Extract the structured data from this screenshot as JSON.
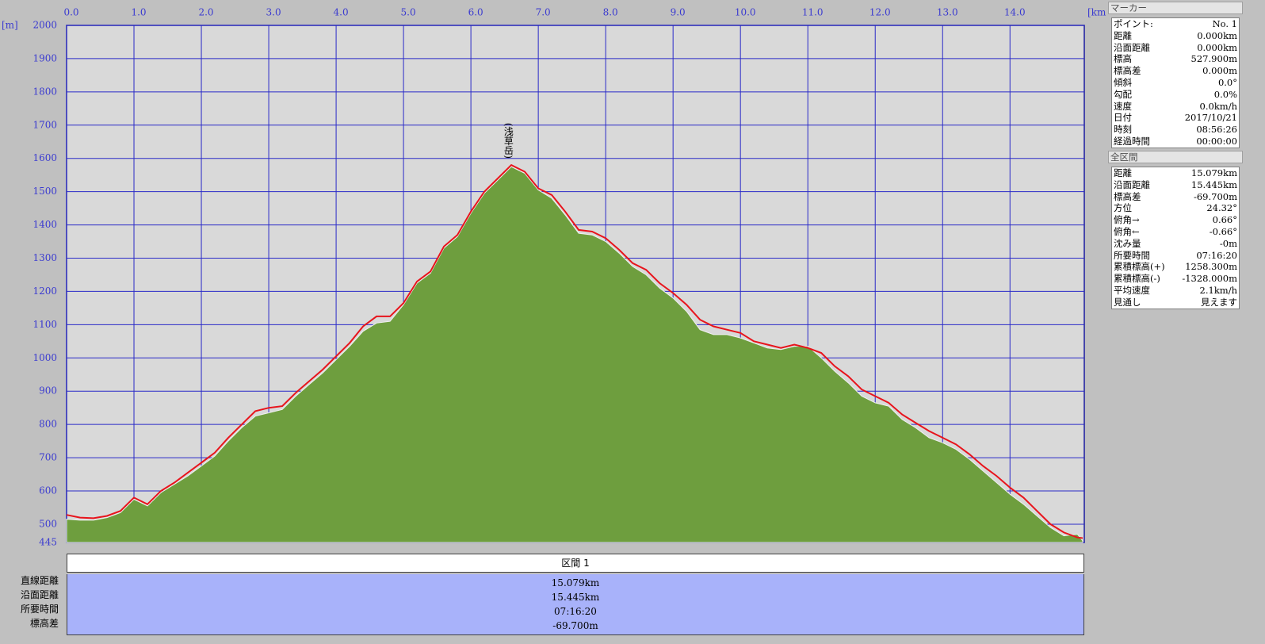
{
  "chart_data": {
    "type": "area",
    "y_unit": "[m]",
    "x_unit": "[km]",
    "x": [
      0,
      0.2,
      0.4,
      0.6,
      0.8,
      1.0,
      1.2,
      1.4,
      1.6,
      1.8,
      2.0,
      2.2,
      2.4,
      2.6,
      2.8,
      3.0,
      3.2,
      3.4,
      3.6,
      3.8,
      4.0,
      4.2,
      4.4,
      4.6,
      4.8,
      5.0,
      5.2,
      5.4,
      5.6,
      5.8,
      6.0,
      6.2,
      6.4,
      6.6,
      6.8,
      7.0,
      7.2,
      7.4,
      7.6,
      7.8,
      8.0,
      8.2,
      8.4,
      8.6,
      8.8,
      9.0,
      9.2,
      9.4,
      9.6,
      9.8,
      10.0,
      10.2,
      10.4,
      10.6,
      10.8,
      11.0,
      11.2,
      11.4,
      11.6,
      11.8,
      12.0,
      12.2,
      12.4,
      12.6,
      12.8,
      13.0,
      13.2,
      13.4,
      13.6,
      13.8,
      14.0,
      14.2,
      14.4,
      14.6,
      14.8,
      15.0,
      15.079
    ],
    "series": [
      {
        "type": "area",
        "color": "#6e9e3e",
        "values": [
          515,
          512,
          512,
          520,
          535,
          575,
          555,
          595,
          620,
          645,
          675,
          705,
          750,
          790,
          825,
          835,
          845,
          885,
          920,
          955,
          995,
          1035,
          1080,
          1105,
          1110,
          1160,
          1225,
          1255,
          1330,
          1365,
          1435,
          1495,
          1535,
          1575,
          1555,
          1505,
          1480,
          1430,
          1375,
          1370,
          1350,
          1315,
          1275,
          1250,
          1210,
          1180,
          1140,
          1085,
          1070,
          1070,
          1060,
          1045,
          1030,
          1025,
          1035,
          1035,
          1000,
          960,
          925,
          885,
          865,
          855,
          815,
          790,
          760,
          745,
          725,
          695,
          660,
          625,
          590,
          560,
          525,
          490,
          465,
          470,
          450
        ]
      },
      {
        "type": "line",
        "color": "#e8141c",
        "values": [
          528,
          520,
          518,
          525,
          540,
          580,
          560,
          600,
          625,
          655,
          685,
          715,
          760,
          800,
          840,
          850,
          855,
          895,
          930,
          965,
          1005,
          1045,
          1095,
          1125,
          1125,
          1165,
          1230,
          1260,
          1335,
          1370,
          1440,
          1500,
          1540,
          1580,
          1560,
          1510,
          1490,
          1440,
          1385,
          1380,
          1360,
          1325,
          1285,
          1265,
          1225,
          1195,
          1160,
          1115,
          1095,
          1085,
          1075,
          1050,
          1040,
          1030,
          1040,
          1030,
          1015,
          975,
          945,
          905,
          885,
          865,
          830,
          805,
          780,
          760,
          740,
          710,
          675,
          645,
          610,
          580,
          540,
          500,
          475,
          460,
          458
        ]
      }
    ],
    "xlim": [
      0,
      15.079
    ],
    "ylim": [
      445,
      2000
    ],
    "xticks": [
      {
        "value": 0,
        "label": "0.0"
      },
      {
        "value": 1,
        "label": "1.0"
      },
      {
        "value": 2,
        "label": "2.0"
      },
      {
        "value": 3,
        "label": "3.0"
      },
      {
        "value": 4,
        "label": "4.0"
      },
      {
        "value": 5,
        "label": "5.0"
      },
      {
        "value": 6,
        "label": "6.0"
      },
      {
        "value": 7,
        "label": "7.0"
      },
      {
        "value": 8,
        "label": "8.0"
      },
      {
        "value": 9,
        "label": "9.0"
      },
      {
        "value": 10,
        "label": "10.0"
      },
      {
        "value": 11,
        "label": "11.0"
      },
      {
        "value": 12,
        "label": "12.0"
      },
      {
        "value": 13,
        "label": "13.0"
      },
      {
        "value": 14,
        "label": "14.0"
      }
    ],
    "yticks": [
      445,
      500,
      600,
      700,
      800,
      900,
      1000,
      1100,
      1200,
      1300,
      1400,
      1500,
      1600,
      1700,
      1800,
      1900,
      2000
    ],
    "grid": true,
    "annotation": {
      "text": "(浅草岳)",
      "x": 6.55,
      "y": 1580
    }
  },
  "marker_panel": {
    "title": "マーカー",
    "rows": [
      [
        "ポイント:",
        "No. 1"
      ],
      [
        "距離",
        "0.000km"
      ],
      [
        "沿面距離",
        "0.000km"
      ],
      [
        "標高",
        "527.900m"
      ],
      [
        "標高差",
        "0.000m"
      ],
      [
        "傾斜",
        "0.0°"
      ],
      [
        "勾配",
        "0.0%"
      ],
      [
        "速度",
        "0.0km/h"
      ],
      [
        "日付",
        "2017/10/21"
      ],
      [
        "時刻",
        "08:56:26"
      ],
      [
        "経過時間",
        "00:00:00"
      ]
    ]
  },
  "section_panel": {
    "title": "全区間",
    "rows": [
      [
        "距離",
        "15.079km"
      ],
      [
        "沿面距離",
        "15.445km"
      ],
      [
        "標高差",
        "-69.700m"
      ],
      [
        "方位",
        "24.32°"
      ],
      [
        "俯角→",
        "0.66°"
      ],
      [
        "俯角←",
        "-0.66°"
      ],
      [
        "沈み量",
        "-0m"
      ],
      [
        "所要時間",
        "07:16:20"
      ],
      [
        "累積標高(+)",
        "1258.300m"
      ],
      [
        "累積標高(-)",
        "-1328.000m"
      ],
      [
        "平均速度",
        "2.1km/h"
      ],
      [
        "見通し",
        "見えます"
      ]
    ]
  },
  "section_table": {
    "header": "区間 1",
    "rows": [
      [
        "直線距離",
        "15.079km"
      ],
      [
        "沿面距離",
        "15.445km"
      ],
      [
        "所要時間",
        "07:16:20"
      ],
      [
        "標高差",
        "-69.700m"
      ]
    ]
  }
}
